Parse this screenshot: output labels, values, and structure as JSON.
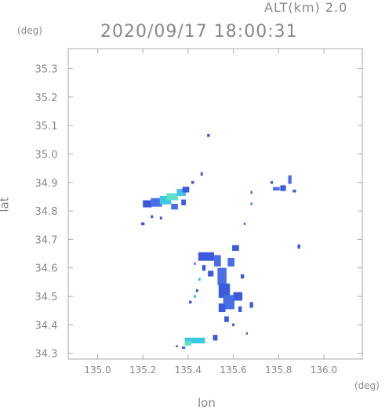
{
  "header": {
    "altitude": "ALT(km)  2.0",
    "timestamp": "2020/09/17  18:00:31"
  },
  "units": {
    "lat": "(deg)",
    "lon": "(deg)"
  },
  "chart_data": {
    "type": "heatmap",
    "title": "2020/09/17  18:00:31",
    "xlabel": "lon",
    "ylabel": "lat",
    "xlim": [
      134.87,
      136.17
    ],
    "ylim": [
      34.28,
      35.37
    ],
    "xticks": [
      "135.0",
      "135.2",
      "135.4",
      "135.6",
      "135.8",
      "136.0"
    ],
    "xtick_values": [
      135.0,
      135.2,
      135.4,
      135.6,
      135.8,
      136.0
    ],
    "yticks": [
      "34.3",
      "34.4",
      "34.5",
      "34.6",
      "34.7",
      "34.8",
      "34.9",
      "35.0",
      "35.1",
      "35.2",
      "35.3"
    ],
    "ytick_values": [
      34.3,
      34.4,
      34.5,
      34.6,
      34.7,
      34.8,
      34.9,
      35.0,
      35.1,
      35.2,
      35.3
    ],
    "grid": false,
    "cells": [
      {
        "lon": 135.22,
        "lat": 34.825,
        "w": 0.04,
        "h": 0.025,
        "color": "#3b5bdc"
      },
      {
        "lon": 135.26,
        "lat": 34.83,
        "w": 0.05,
        "h": 0.03,
        "color": "#4a6ee8"
      },
      {
        "lon": 135.3,
        "lat": 34.838,
        "w": 0.05,
        "h": 0.03,
        "color": "#3cc8e0"
      },
      {
        "lon": 135.33,
        "lat": 34.85,
        "w": 0.05,
        "h": 0.025,
        "color": "#5fe0c8"
      },
      {
        "lon": 135.37,
        "lat": 34.865,
        "w": 0.04,
        "h": 0.025,
        "color": "#4ac0e8"
      },
      {
        "lon": 135.39,
        "lat": 34.875,
        "w": 0.03,
        "h": 0.02,
        "color": "#3b5bdc"
      },
      {
        "lon": 135.34,
        "lat": 34.815,
        "w": 0.03,
        "h": 0.02,
        "color": "#4a6ee8"
      },
      {
        "lon": 135.38,
        "lat": 34.83,
        "w": 0.02,
        "h": 0.02,
        "color": "#3b5bdc"
      },
      {
        "lon": 135.2,
        "lat": 34.755,
        "w": 0.015,
        "h": 0.01,
        "color": "#3b5bdc"
      },
      {
        "lon": 135.24,
        "lat": 34.78,
        "w": 0.01,
        "h": 0.01,
        "color": "#3b5bdc"
      },
      {
        "lon": 135.28,
        "lat": 34.775,
        "w": 0.01,
        "h": 0.01,
        "color": "#3b5bdc"
      },
      {
        "lon": 135.42,
        "lat": 34.9,
        "w": 0.012,
        "h": 0.01,
        "color": "#3b5bdc"
      },
      {
        "lon": 135.46,
        "lat": 34.93,
        "w": 0.01,
        "h": 0.012,
        "color": "#3b5bdc"
      },
      {
        "lon": 135.49,
        "lat": 35.065,
        "w": 0.012,
        "h": 0.01,
        "color": "#3b5bdc"
      },
      {
        "lon": 135.89,
        "lat": 34.675,
        "w": 0.012,
        "h": 0.015,
        "color": "#3b5bdc"
      },
      {
        "lon": 135.85,
        "lat": 34.91,
        "w": 0.015,
        "h": 0.03,
        "color": "#4a6ee8"
      },
      {
        "lon": 135.82,
        "lat": 34.88,
        "w": 0.025,
        "h": 0.02,
        "color": "#3b5bdc"
      },
      {
        "lon": 135.79,
        "lat": 34.878,
        "w": 0.03,
        "h": 0.012,
        "color": "#4a6ee8"
      },
      {
        "lon": 135.87,
        "lat": 34.87,
        "w": 0.015,
        "h": 0.01,
        "color": "#3b5bdc"
      },
      {
        "lon": 135.77,
        "lat": 34.9,
        "w": 0.01,
        "h": 0.01,
        "color": "#3b5bdc"
      },
      {
        "lon": 135.68,
        "lat": 34.865,
        "w": 0.008,
        "h": 0.01,
        "color": "#3b5bdc"
      },
      {
        "lon": 135.68,
        "lat": 34.825,
        "w": 0.008,
        "h": 0.008,
        "color": "#3b5bdc"
      },
      {
        "lon": 135.65,
        "lat": 34.755,
        "w": 0.008,
        "h": 0.008,
        "color": "#3b5bdc"
      },
      {
        "lon": 135.48,
        "lat": 34.64,
        "w": 0.07,
        "h": 0.03,
        "color": "#3b5bdc"
      },
      {
        "lon": 135.53,
        "lat": 34.625,
        "w": 0.03,
        "h": 0.04,
        "color": "#4a6ee8"
      },
      {
        "lon": 135.47,
        "lat": 34.6,
        "w": 0.015,
        "h": 0.02,
        "color": "#3b5bdc"
      },
      {
        "lon": 135.59,
        "lat": 34.62,
        "w": 0.03,
        "h": 0.03,
        "color": "#4a6ee8"
      },
      {
        "lon": 135.61,
        "lat": 34.67,
        "w": 0.03,
        "h": 0.02,
        "color": "#3b5bdc"
      },
      {
        "lon": 135.5,
        "lat": 34.58,
        "w": 0.025,
        "h": 0.02,
        "color": "#3b5bdc"
      },
      {
        "lon": 135.55,
        "lat": 34.57,
        "w": 0.04,
        "h": 0.06,
        "color": "#4a6ee8"
      },
      {
        "lon": 135.56,
        "lat": 34.52,
        "w": 0.05,
        "h": 0.05,
        "color": "#3b5bdc"
      },
      {
        "lon": 135.58,
        "lat": 34.48,
        "w": 0.05,
        "h": 0.05,
        "color": "#4a6ee8"
      },
      {
        "lon": 135.55,
        "lat": 34.46,
        "w": 0.03,
        "h": 0.03,
        "color": "#3b5bdc"
      },
      {
        "lon": 135.62,
        "lat": 34.5,
        "w": 0.04,
        "h": 0.03,
        "color": "#3b5bdc"
      },
      {
        "lon": 135.63,
        "lat": 34.455,
        "w": 0.015,
        "h": 0.02,
        "color": "#3b5bdc"
      },
      {
        "lon": 135.68,
        "lat": 34.47,
        "w": 0.015,
        "h": 0.02,
        "color": "#3b5bdc"
      },
      {
        "lon": 135.57,
        "lat": 34.42,
        "w": 0.02,
        "h": 0.02,
        "color": "#3b5bdc"
      },
      {
        "lon": 135.45,
        "lat": 34.56,
        "w": 0.01,
        "h": 0.01,
        "color": "#3cc8e0"
      },
      {
        "lon": 135.43,
        "lat": 34.5,
        "w": 0.01,
        "h": 0.01,
        "color": "#3cc8e0"
      },
      {
        "lon": 135.41,
        "lat": 34.48,
        "w": 0.012,
        "h": 0.01,
        "color": "#3b5bdc"
      },
      {
        "lon": 135.44,
        "lat": 34.52,
        "w": 0.01,
        "h": 0.01,
        "color": "#3b5bdc"
      },
      {
        "lon": 135.43,
        "lat": 34.615,
        "w": 0.008,
        "h": 0.008,
        "color": "#3b5bdc"
      },
      {
        "lon": 135.64,
        "lat": 34.57,
        "w": 0.015,
        "h": 0.015,
        "color": "#3b5bdc"
      },
      {
        "lon": 135.6,
        "lat": 34.4,
        "w": 0.01,
        "h": 0.01,
        "color": "#3b5bdc"
      },
      {
        "lon": 135.66,
        "lat": 34.37,
        "w": 0.008,
        "h": 0.008,
        "color": "#3b5bdc"
      },
      {
        "lon": 135.43,
        "lat": 34.345,
        "w": 0.09,
        "h": 0.02,
        "color": "#3cc8e0"
      },
      {
        "lon": 135.4,
        "lat": 34.335,
        "w": 0.03,
        "h": 0.015,
        "color": "#5fe0c8"
      },
      {
        "lon": 135.52,
        "lat": 34.355,
        "w": 0.02,
        "h": 0.02,
        "color": "#3b5bdc"
      },
      {
        "lon": 135.38,
        "lat": 34.32,
        "w": 0.015,
        "h": 0.008,
        "color": "#3b5bdc"
      },
      {
        "lon": 135.35,
        "lat": 34.325,
        "w": 0.01,
        "h": 0.006,
        "color": "#3b5bdc"
      }
    ]
  }
}
